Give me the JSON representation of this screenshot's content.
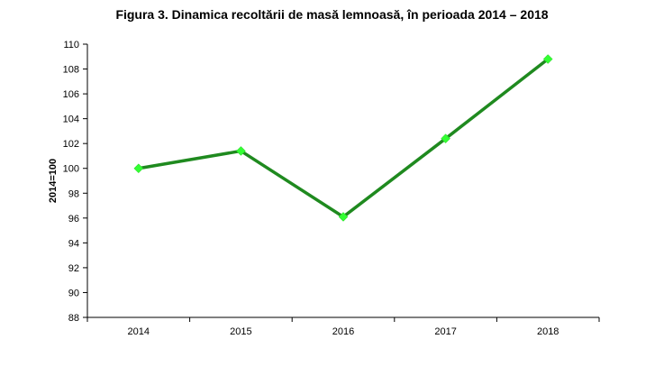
{
  "chart_data": {
    "type": "line",
    "title": "Figura 3. Dinamica recoltării de masă lemnoasă, în perioada 2014 – 2018",
    "xlabel": "",
    "ylabel": "2014=100",
    "categories": [
      "2014",
      "2015",
      "2016",
      "2017",
      "2018"
    ],
    "series": [
      {
        "values": [
          100.0,
          101.4,
          96.1,
          102.4,
          108.8
        ],
        "color": "#1f8a1f",
        "marker_color": "#33ff33"
      }
    ],
    "ylim": [
      88,
      110
    ],
    "yticks": [
      88,
      90,
      92,
      94,
      96,
      98,
      100,
      102,
      104,
      106,
      108,
      110
    ],
    "grid": false,
    "legend": "none"
  }
}
